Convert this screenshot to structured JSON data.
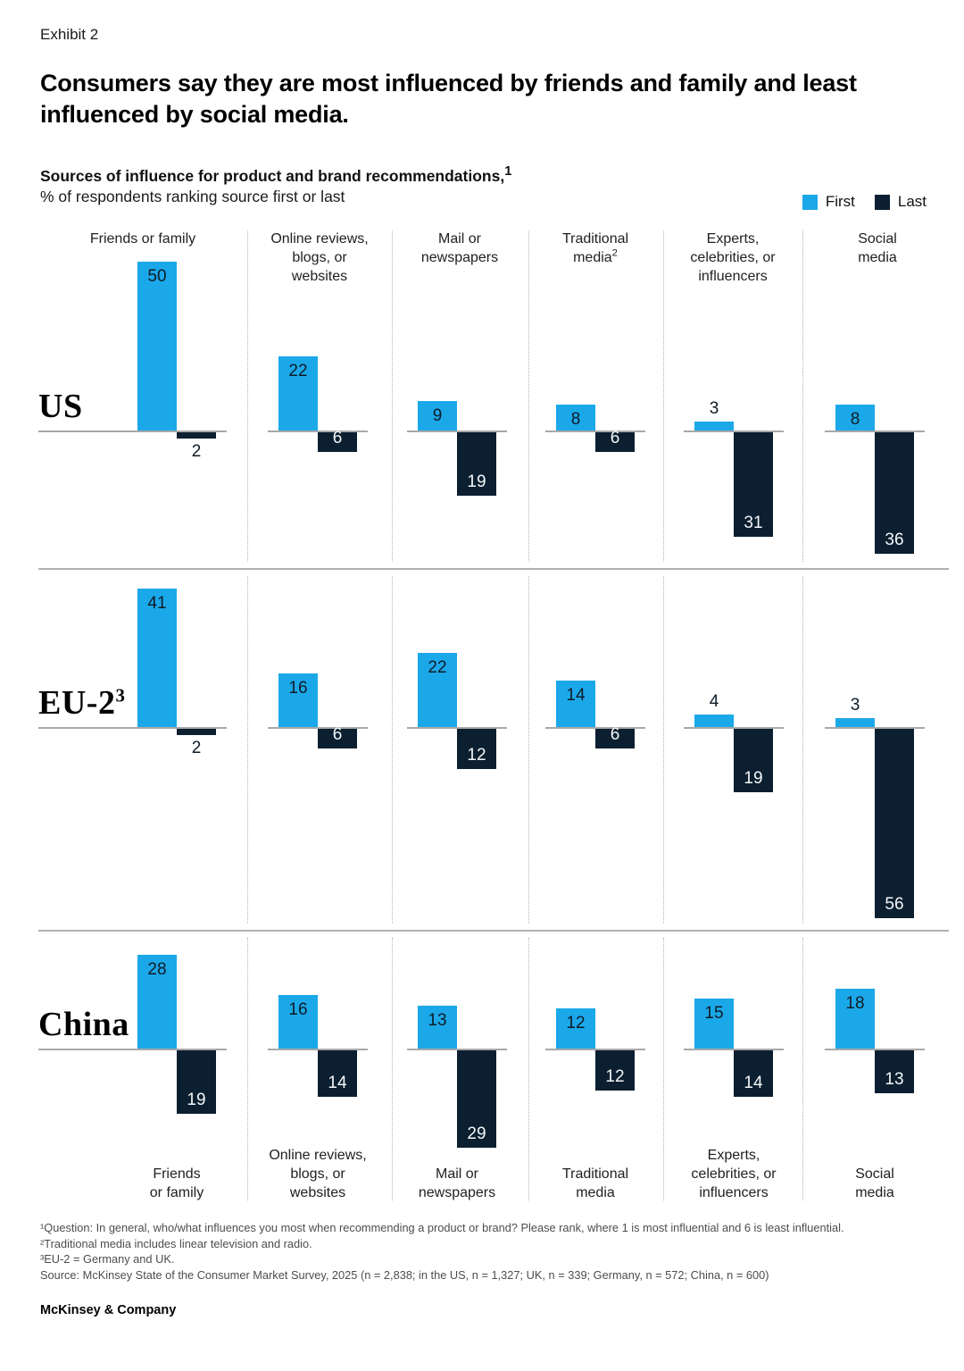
{
  "page": {
    "eyebrow": "Exhibit 2",
    "title": "Consumers say they are most influenced by friends and family and least influenced by social media.",
    "subtitle_bold": "Sources of influence for product and brand recommendations,",
    "subtitle_bold_sup": "1",
    "subtitle": "% of respondents ranking source first or last",
    "footer": "McKinsey & Company"
  },
  "legend": {
    "items": [
      {
        "label": "First",
        "color": "#1BA8E9"
      },
      {
        "label": "Last",
        "color": "#0B1F30"
      }
    ]
  },
  "footnotes": [
    "¹Question: In general, who/what influences you most when recommending a product or brand? Please rank, where 1 is most influential and 6 is least influential.",
    "²Traditional media includes linear television and radio.",
    "³EU-2 = Germany and UK.",
    "Source: McKinsey State of the Consumer Market Survey, 2025 (n = 2,838; in the US, n = 1,327; UK, n = 339; Germany, n = 572; China, n = 600)"
  ],
  "chart_data": {
    "type": "bar",
    "title": "Sources of influence for product and brand recommendations",
    "unit": "% of respondents ranking source first or last",
    "series_names": [
      "First",
      "Last"
    ],
    "colors": {
      "First": "#1BA8E9",
      "Last": "#0B1F30"
    },
    "legend_position": "top-right",
    "grid": false,
    "ylim": [
      -56,
      50
    ],
    "categories": [
      {
        "id": "friends-family",
        "top_label": "Friends or family",
        "top_sup": "",
        "bottom_label": "Friends\nor family"
      },
      {
        "id": "online-reviews",
        "top_label": "Online reviews,\nblogs, or\nwebsites",
        "top_sup": "",
        "bottom_label": "Online reviews,\nblogs, or\nwebsites"
      },
      {
        "id": "mail-newspapers",
        "top_label": "Mail or\nnewspapers",
        "top_sup": "",
        "bottom_label": "Mail or\nnewspapers"
      },
      {
        "id": "traditional-media",
        "top_label": "Traditional\nmedia",
        "top_sup": "2",
        "bottom_label": "Traditional\nmedia"
      },
      {
        "id": "experts",
        "top_label": "Experts,\ncelebrities, or\ninfluencers",
        "top_sup": "",
        "bottom_label": "Experts,\ncelebrities, or\ninfluencers"
      },
      {
        "id": "social-media",
        "top_label": "Social\nmedia",
        "top_sup": "",
        "bottom_label": "Social\nmedia"
      }
    ],
    "rows": [
      {
        "label": "US",
        "sup": "",
        "first": [
          50,
          22,
          9,
          8,
          3,
          8
        ],
        "last": [
          2,
          6,
          19,
          6,
          31,
          36
        ]
      },
      {
        "label": "EU-2",
        "sup": "3",
        "first": [
          41,
          16,
          22,
          14,
          4,
          3
        ],
        "last": [
          2,
          6,
          12,
          6,
          19,
          56
        ]
      },
      {
        "label": "China",
        "sup": "",
        "first": [
          28,
          16,
          13,
          12,
          15,
          18
        ],
        "last": [
          19,
          14,
          29,
          12,
          14,
          13
        ]
      }
    ]
  }
}
